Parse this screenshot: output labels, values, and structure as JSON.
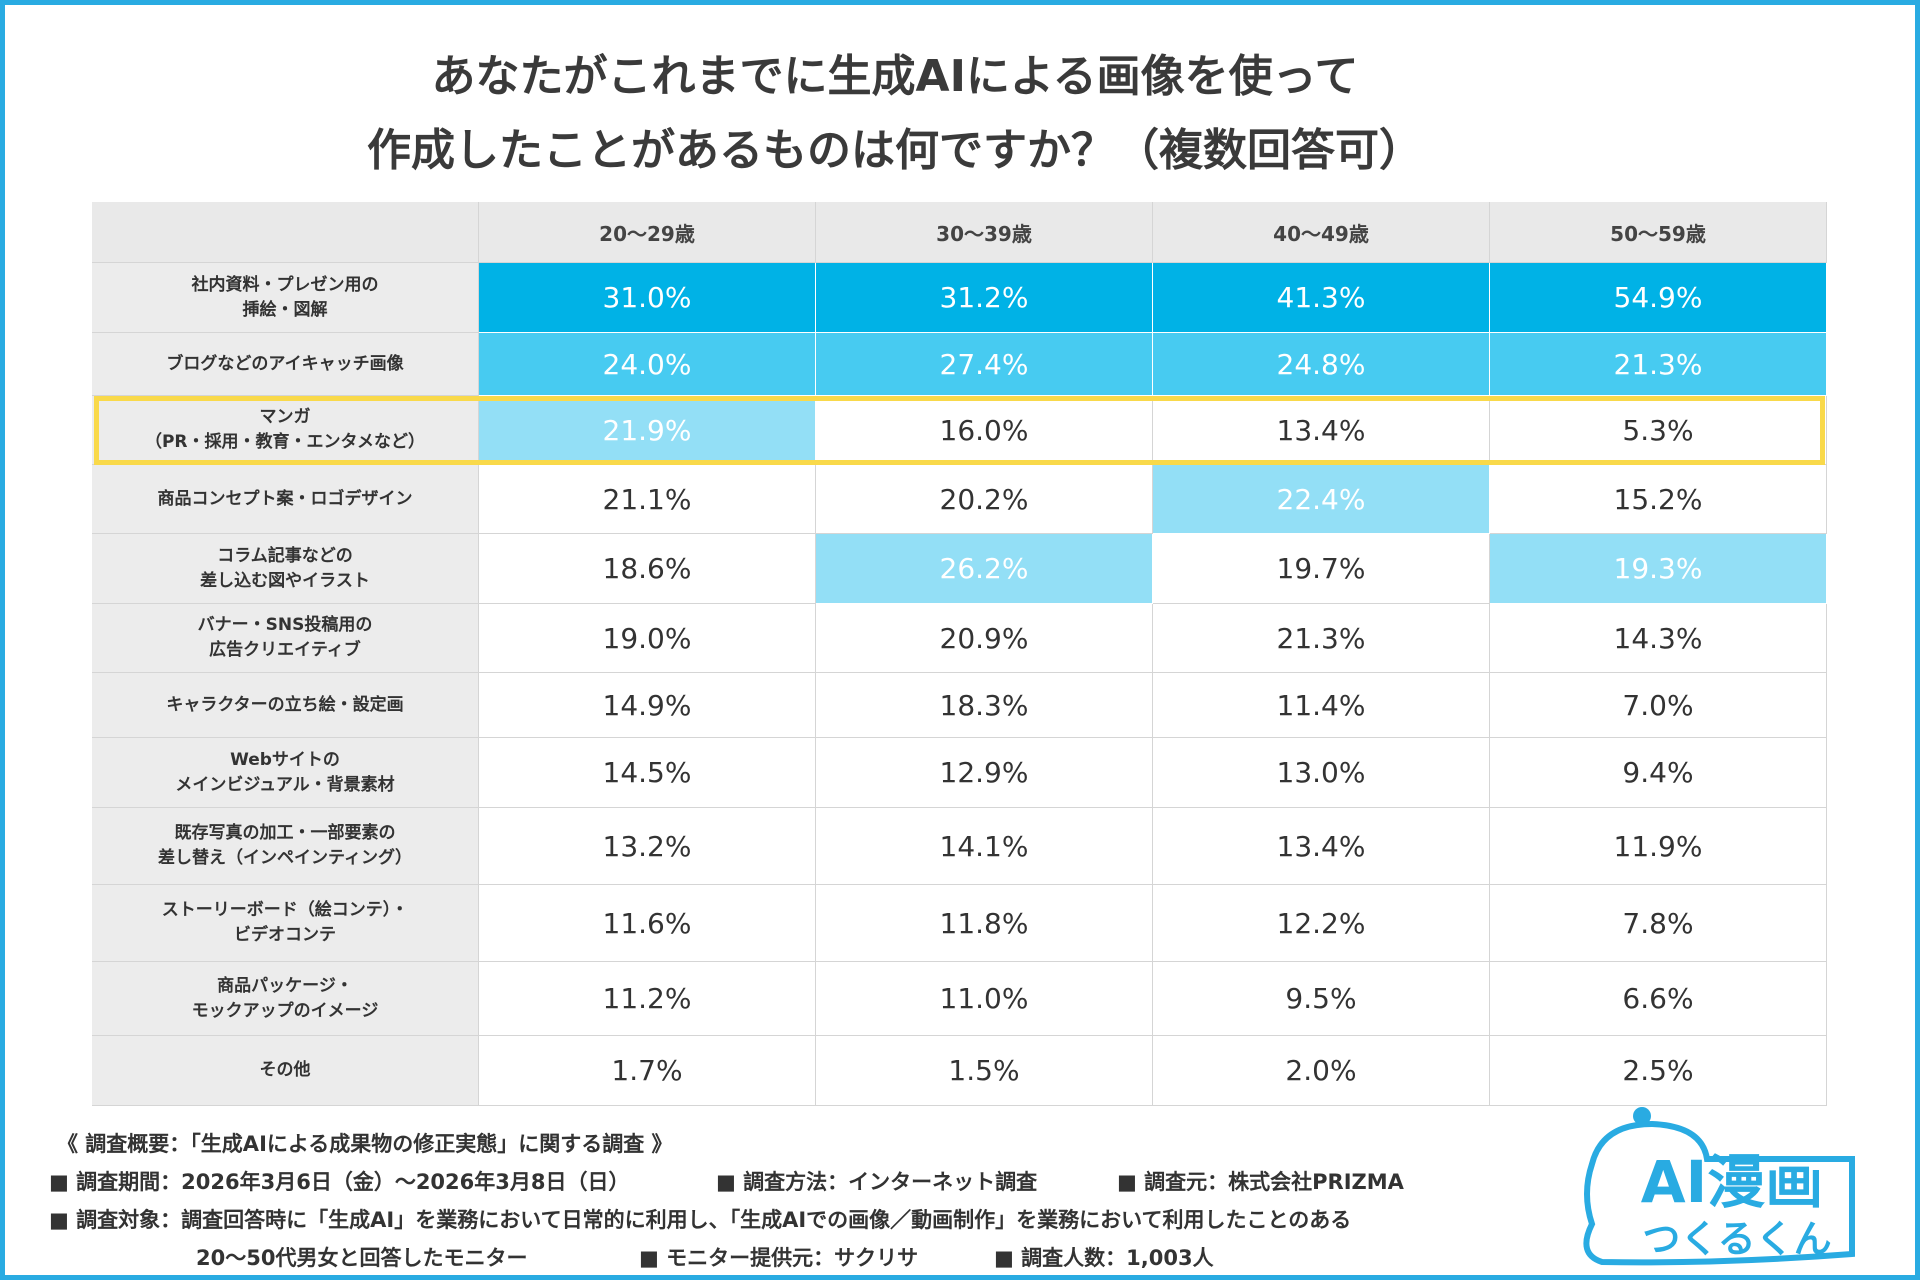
{
  "title": [
    "あなたがこれまでに生成AIによる画像を使って",
    "作成したことがあるものは何ですか？（複数回答可）"
  ],
  "table": {
    "columns": [
      "20〜29歳",
      "30〜39歳",
      "40〜49歳",
      "50〜59歳"
    ],
    "rows": [
      {
        "label": "社内資料・プレゼン用の\n挿絵・図解",
        "values": [
          "31.0%",
          "31.2%",
          "41.3%",
          "54.9%"
        ],
        "ranks": [
          1,
          1,
          1,
          1
        ]
      },
      {
        "label": "ブログなどのアイキャッチ画像",
        "values": [
          "24.0%",
          "27.4%",
          "24.8%",
          "21.3%"
        ],
        "ranks": [
          2,
          2,
          2,
          2
        ]
      },
      {
        "label": "マンガ\n（PR・採用・教育・エンタメなど）",
        "values": [
          "21.9%",
          "16.0%",
          "13.4%",
          "5.3%"
        ],
        "ranks": [
          3,
          null,
          null,
          null
        ]
      },
      {
        "label": "商品コンセプト案・ロゴデザイン",
        "values": [
          "21.1%",
          "20.2%",
          "22.4%",
          "15.2%"
        ],
        "ranks": [
          null,
          null,
          3,
          null
        ]
      },
      {
        "label": "コラム記事などの\n差し込む図やイラスト",
        "values": [
          "18.6%",
          "26.2%",
          "19.7%",
          "19.3%"
        ],
        "ranks": [
          null,
          3,
          null,
          3
        ]
      },
      {
        "label": "バナー・SNS投稿用の\n広告クリエイティブ",
        "values": [
          "19.0%",
          "20.9%",
          "21.3%",
          "14.3%"
        ],
        "ranks": [
          null,
          null,
          null,
          null
        ]
      },
      {
        "label": "キャラクターの立ち絵・設定画",
        "values": [
          "14.9%",
          "18.3%",
          "11.4%",
          "7.0%"
        ],
        "ranks": [
          null,
          null,
          null,
          null
        ]
      },
      {
        "label": "Webサイトの\nメインビジュアル・背景素材",
        "values": [
          "14.5%",
          "12.9%",
          "13.0%",
          "9.4%"
        ],
        "ranks": [
          null,
          null,
          null,
          null
        ]
      },
      {
        "label": "既存写真の加工・一部要素の\n差し替え（インペインティング）",
        "values": [
          "13.2%",
          "14.1%",
          "13.4%",
          "11.9%"
        ],
        "ranks": [
          null,
          null,
          null,
          null
        ]
      },
      {
        "label": "ストーリーボード（絵コンテ）・\nビデオコンテ",
        "values": [
          "11.6%",
          "11.8%",
          "12.2%",
          "7.8%"
        ],
        "ranks": [
          null,
          null,
          null,
          null
        ]
      },
      {
        "label": "商品パッケージ・\nモックアップのイメージ",
        "values": [
          "11.2%",
          "11.0%",
          "9.5%",
          "6.6%"
        ],
        "ranks": [
          null,
          null,
          null,
          null
        ]
      },
      {
        "label": "その他",
        "values": [
          "1.7%",
          "1.5%",
          "2.0%",
          "2.5%"
        ],
        "ranks": [
          null,
          null,
          null,
          null
        ]
      }
    ],
    "rank_colors": [
      "#00b2e6",
      "#47cbf1",
      "#93dff6"
    ],
    "highlight_row": 2,
    "highlight_color": "#f9d94a"
  },
  "footer": {
    "summary": "《 調査概要：「生成AIによる成果物の修正実態」に関する調査 》",
    "lines": [
      [
        "■ 調査期間：2026年3月6日（金）〜2026年3月8日（日）",
        "■ 調査方法：インターネット調査",
        "■ 調査元：株式会社PRIZMA"
      ],
      [
        "■ 調査対象：調査回答時に「生成AI」を業務において日常的に利用し、「生成AIでの画像／動画制作」を業務において利用したことのある"
      ],
      [
        "20〜50代男女と回答したモニター",
        "■ モニター提供元：サクリサ",
        "■ 調査人数：1,003人"
      ]
    ]
  },
  "logo": {
    "line1": "AI漫画",
    "line2": "つくるくん"
  }
}
